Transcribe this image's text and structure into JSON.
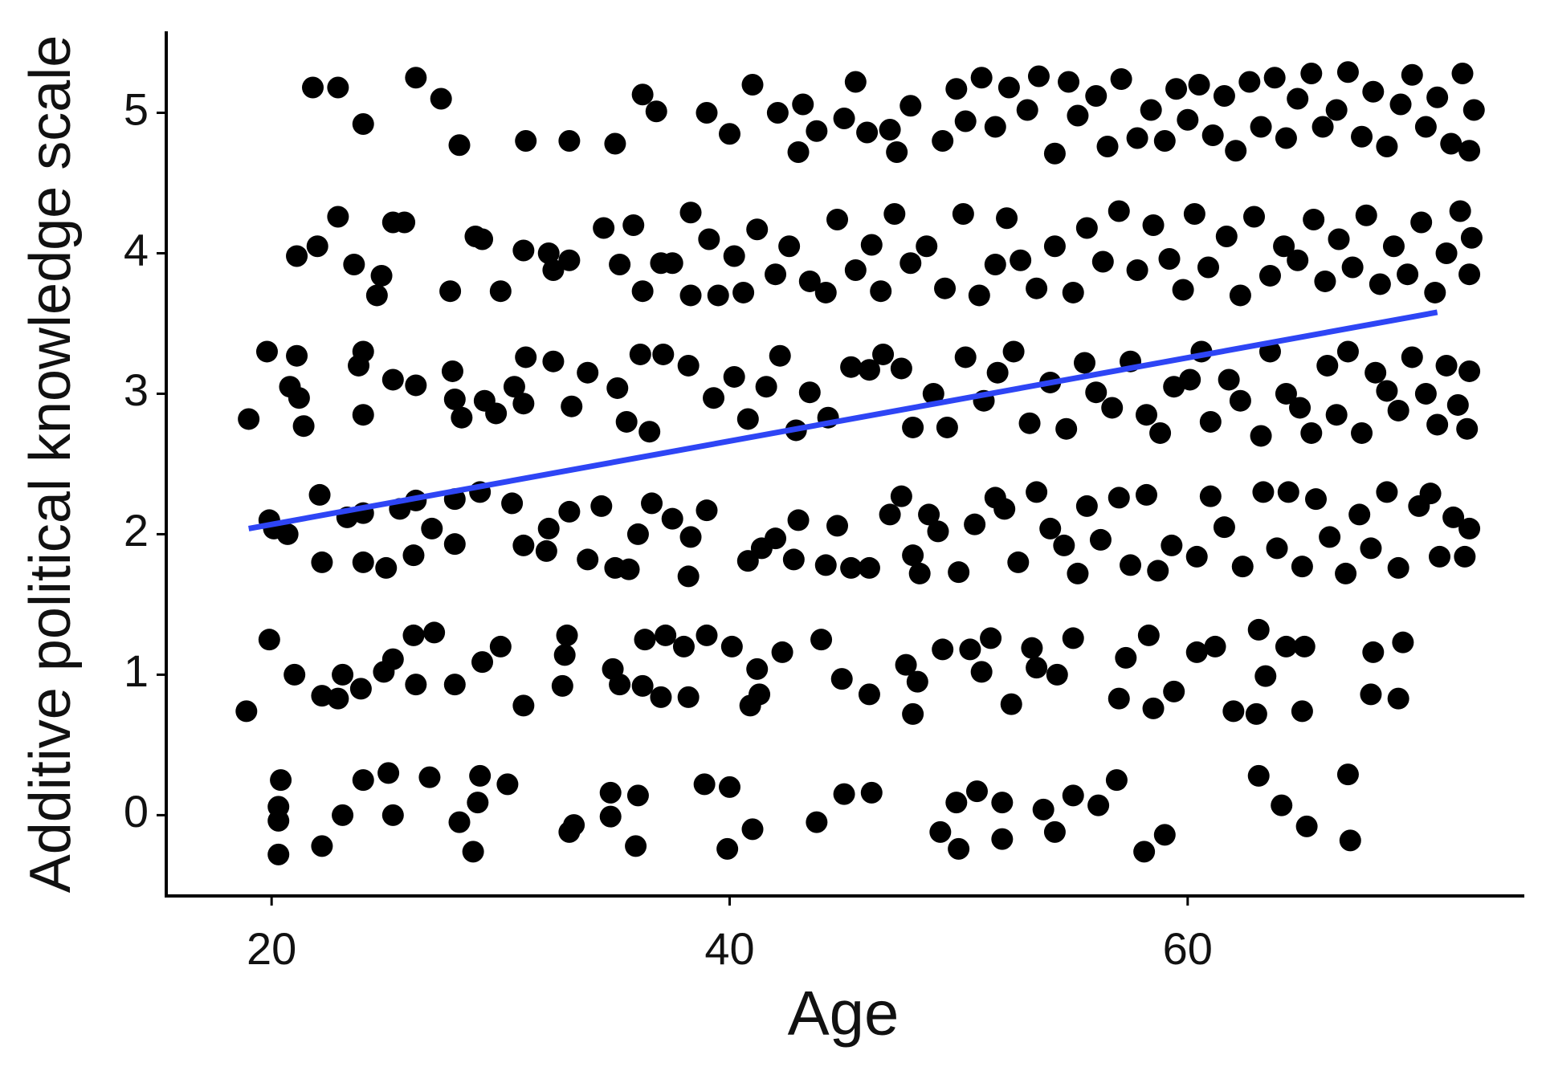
{
  "chart_data": {
    "type": "scatter",
    "x_label": "Age",
    "y_label": "Additive political knowledge scale",
    "xlim": [
      15.4,
      74.7
    ],
    "ylim": [
      -0.575,
      5.58
    ],
    "xticks": [
      20,
      40,
      60
    ],
    "yticks": [
      0,
      1,
      2,
      3,
      4,
      5
    ],
    "color": "#000000",
    "x": [
      20.4,
      20.3,
      20.3,
      20.3,
      22.2,
      23.1,
      24,
      25.1,
      25.3,
      26.9,
      28.2,
      28.8,
      29.1,
      29,
      30.3,
      33,
      33.2,
      34.8,
      34.8,
      36,
      35.9,
      38.9,
      40,
      39.9,
      41,
      43.8,
      45,
      46.2,
      49.2,
      49.9,
      50,
      50.8,
      51.9,
      51.9,
      53.7,
      54.2,
      55,
      56.1,
      56.9,
      58.1,
      59,
      63.1,
      64.1,
      65.2,
      67,
      67.1,
      18.9,
      19.9,
      21,
      22.2,
      22.9,
      23.1,
      23.9,
      24.9,
      25.3,
      26.2,
      26.3,
      27.1,
      28,
      29.2,
      30,
      31,
      32.7,
      32.9,
      32.8,
      34.9,
      35.2,
      36.2,
      36.3,
      37,
      37.2,
      38,
      38.2,
      39,
      40.1,
      40.9,
      41.3,
      41.2,
      42.3,
      44,
      44.9,
      46.1,
      47.7,
      48,
      48.2,
      49.3,
      50.5,
      51,
      51.4,
      52.3,
      53.2,
      53.4,
      54.3,
      55,
      57,
      57.3,
      58.3,
      58.5,
      59.4,
      60.4,
      61.2,
      62,
      63,
      63.1,
      63.4,
      64.3,
      65.1,
      65,
      68.1,
      68,
      69.2,
      69.4,
      19.9,
      20.1,
      20.7,
      22.2,
      22.1,
      23.3,
      24,
      24,
      25,
      25.6,
      26.2,
      26.3,
      27,
      28,
      28,
      29.1,
      30.5,
      31,
      32.1,
      32,
      33,
      33.8,
      34.4,
      35,
      35.6,
      36,
      36.6,
      37.5,
      38.2,
      38.3,
      39,
      40.8,
      41.4,
      42,
      42.8,
      43,
      44.2,
      44.7,
      45.3,
      46.1,
      47,
      47.5,
      48,
      48.3,
      48.7,
      49.1,
      50,
      50.7,
      51.6,
      52,
      52.6,
      53.4,
      54,
      54.6,
      55.2,
      55.6,
      56.2,
      57,
      57.5,
      58.2,
      58.7,
      59.3,
      60.4,
      61,
      61.6,
      62.4,
      63.3,
      63.9,
      64.4,
      65,
      65.6,
      66.2,
      66.9,
      67.5,
      68,
      68.7,
      69.2,
      70.1,
      70.6,
      71,
      71.6,
      72.3,
      72.1,
      19,
      19.8,
      20.8,
      21.1,
      21.4,
      21.2,
      23.8,
      24,
      24,
      25.3,
      26.3,
      27.9,
      28,
      28.3,
      29.3,
      29.8,
      30.6,
      31.1,
      31,
      32.3,
      33.1,
      33.8,
      35.1,
      35.5,
      36.1,
      36.5,
      37.1,
      38.2,
      39.3,
      40.2,
      40.8,
      41.6,
      42.2,
      42.9,
      43.5,
      44.3,
      45.3,
      46.1,
      46.7,
      47.5,
      48,
      48.9,
      49.5,
      50.3,
      51.1,
      51.7,
      52.4,
      53.1,
      54,
      54.7,
      55.5,
      56,
      56.7,
      57.5,
      58.2,
      58.8,
      59.4,
      60.1,
      60.6,
      61,
      61.8,
      62.3,
      63.2,
      63.6,
      64.3,
      64.9,
      65.4,
      66.1,
      66.5,
      67,
      67.6,
      68.2,
      68.7,
      69.2,
      69.8,
      70.4,
      70.9,
      71.3,
      71.8,
      72.3,
      72.2,
      21.1,
      22,
      22.9,
      23.6,
      24.6,
      24.8,
      25.3,
      25.8,
      27.8,
      28.9,
      29.2,
      30,
      31,
      32.1,
      32.3,
      33,
      34.5,
      35.2,
      35.8,
      36.2,
      37,
      37.5,
      38.3,
      38.3,
      39.1,
      39.5,
      40.2,
      40.6,
      41.2,
      42,
      42.6,
      43.5,
      44.2,
      44.7,
      45.5,
      46.2,
      46.6,
      47.2,
      47.9,
      48.6,
      49.4,
      50.2,
      50.9,
      51.6,
      52.1,
      52.7,
      53.4,
      54.2,
      55,
      55.6,
      56.3,
      57,
      57.8,
      58.5,
      59.2,
      59.8,
      60.3,
      60.9,
      61.7,
      62.3,
      62.9,
      63.6,
      64.2,
      64.8,
      65.5,
      66,
      66.6,
      67.2,
      67.8,
      68.4,
      69,
      69.6,
      70.2,
      70.8,
      71.3,
      71.9,
      72.4,
      72.3,
      21.8,
      22.9,
      24,
      26.3,
      27.4,
      28.2,
      31.1,
      33,
      35,
      36.2,
      36.8,
      39,
      40,
      41,
      42.1,
      43,
      43.2,
      43.8,
      45,
      45.5,
      46,
      47,
      47.3,
      47.9,
      49.3,
      49.9,
      50.3,
      51,
      51.6,
      52.2,
      53,
      53.5,
      54.2,
      54.8,
      55.2,
      56,
      56.5,
      57.1,
      57.8,
      58.4,
      59,
      59.5,
      60,
      60.5,
      61.1,
      61.6,
      62.1,
      62.7,
      63.2,
      63.8,
      64.3,
      64.8,
      65.4,
      65.9,
      66.5,
      67,
      67.6,
      68.1,
      68.7,
      69.3,
      69.8,
      70.4,
      70.9,
      71.5,
      72,
      72.3,
      72.5
    ],
    "values": [
      0.25,
      0.06,
      -0.04,
      -0.28,
      -0.22,
      0,
      0.25,
      0.3,
      0,
      0.27,
      -0.05,
      -0.26,
      0.28,
      0.09,
      0.22,
      -0.12,
      -0.07,
      0.16,
      -0.01,
      0.14,
      -0.22,
      0.22,
      0.2,
      -0.24,
      -0.1,
      -0.05,
      0.15,
      0.16,
      -0.12,
      0.09,
      -0.24,
      0.17,
      0.09,
      -0.17,
      0.04,
      -0.12,
      0.14,
      0.07,
      0.25,
      -0.26,
      -0.14,
      0.28,
      0.07,
      -0.08,
      0.29,
      -0.18,
      0.74,
      1.25,
      1.0,
      0.85,
      0.83,
      1.0,
      0.9,
      1.02,
      1.11,
      1.28,
      0.93,
      1.3,
      0.93,
      1.09,
      1.2,
      0.78,
      0.92,
      1.28,
      1.14,
      1.04,
      0.93,
      0.92,
      1.25,
      0.84,
      1.28,
      1.2,
      0.84,
      1.28,
      1.2,
      0.78,
      0.86,
      1.04,
      1.16,
      1.25,
      0.97,
      0.86,
      1.07,
      0.72,
      0.95,
      1.18,
      1.18,
      1.02,
      1.26,
      0.79,
      1.19,
      1.05,
      1.0,
      1.26,
      0.83,
      1.12,
      1.28,
      0.76,
      0.88,
      1.16,
      1.2,
      0.74,
      0.72,
      1.32,
      0.99,
      1.2,
      1.2,
      0.74,
      1.16,
      0.86,
      0.83,
      1.23,
      2.1,
      2.04,
      2.0,
      1.8,
      2.28,
      2.12,
      1.8,
      2.15,
      1.76,
      2.18,
      1.85,
      2.24,
      2.04,
      1.93,
      2.25,
      2.3,
      2.22,
      1.92,
      2.04,
      1.88,
      2.16,
      1.82,
      2.2,
      1.76,
      1.75,
      2.0,
      2.22,
      2.11,
      1.7,
      1.98,
      2.17,
      1.81,
      1.9,
      1.97,
      1.82,
      2.1,
      1.78,
      2.06,
      1.76,
      1.76,
      2.14,
      2.27,
      1.85,
      1.72,
      2.14,
      2.02,
      1.73,
      2.07,
      2.26,
      2.18,
      1.8,
      2.3,
      2.04,
      1.92,
      1.72,
      2.2,
      1.96,
      2.26,
      1.78,
      2.28,
      1.74,
      1.92,
      1.84,
      2.27,
      2.05,
      1.77,
      2.3,
      1.9,
      2.3,
      1.77,
      2.25,
      1.98,
      1.72,
      2.14,
      1.9,
      2.3,
      1.76,
      2.2,
      2.29,
      1.84,
      2.12,
      2.04,
      1.84,
      2.82,
      3.3,
      3.05,
      3.27,
      2.77,
      2.97,
      3.2,
      3.3,
      2.85,
      3.1,
      3.06,
      3.16,
      2.96,
      2.83,
      2.95,
      2.86,
      3.05,
      3.26,
      2.93,
      3.23,
      2.91,
      3.15,
      3.04,
      2.8,
      3.28,
      2.73,
      3.28,
      3.2,
      2.97,
      3.12,
      2.82,
      3.05,
      3.27,
      2.74,
      3.01,
      2.83,
      3.19,
      3.17,
      3.28,
      3.18,
      2.76,
      3.0,
      2.76,
      3.26,
      2.95,
      3.15,
      3.3,
      2.79,
      3.08,
      2.75,
      3.22,
      3.01,
      2.9,
      3.23,
      2.85,
      2.72,
      3.05,
      3.1,
      3.3,
      2.8,
      3.1,
      2.95,
      2.7,
      3.3,
      3.0,
      2.9,
      2.72,
      3.2,
      2.85,
      3.3,
      2.72,
      3.15,
      3.02,
      2.88,
      3.26,
      3.0,
      2.78,
      3.2,
      2.92,
      3.16,
      2.75,
      3.98,
      4.05,
      4.26,
      3.92,
      3.7,
      3.84,
      4.22,
      4.22,
      3.73,
      4.12,
      4.1,
      3.73,
      4.02,
      4.0,
      3.88,
      3.95,
      4.18,
      3.92,
      4.2,
      3.73,
      3.93,
      3.93,
      3.7,
      4.29,
      4.1,
      3.7,
      3.98,
      3.72,
      4.17,
      3.85,
      4.05,
      3.8,
      3.72,
      4.24,
      3.88,
      4.06,
      3.73,
      4.28,
      3.93,
      4.05,
      3.75,
      4.28,
      3.7,
      3.92,
      4.25,
      3.95,
      3.75,
      4.05,
      3.72,
      4.18,
      3.94,
      4.3,
      3.88,
      4.2,
      3.96,
      3.74,
      4.28,
      3.9,
      4.12,
      3.7,
      4.26,
      3.84,
      4.05,
      3.95,
      4.24,
      3.8,
      4.1,
      3.9,
      4.27,
      3.78,
      4.05,
      3.85,
      4.22,
      3.72,
      4.0,
      4.3,
      4.11,
      3.85,
      5.18,
      5.18,
      4.92,
      5.25,
      5.1,
      4.77,
      4.8,
      4.8,
      4.78,
      5.13,
      5.01,
      5.0,
      4.85,
      5.2,
      5.0,
      4.72,
      5.06,
      4.87,
      4.96,
      5.22,
      4.86,
      4.88,
      4.72,
      5.05,
      4.8,
      5.17,
      4.94,
      5.25,
      4.9,
      5.18,
      5.02,
      5.26,
      4.71,
      5.22,
      4.98,
      5.12,
      4.76,
      5.24,
      4.82,
      5.02,
      4.8,
      5.17,
      4.95,
      5.2,
      4.84,
      5.12,
      4.73,
      5.22,
      4.9,
      5.25,
      4.82,
      5.1,
      5.28,
      4.9,
      5.02,
      5.29,
      4.83,
      5.15,
      4.76,
      5.06,
      5.27,
      4.9,
      5.11,
      4.78,
      5.28,
      4.73,
      5.02
    ],
    "trend_line": {
      "x": [
        19,
        70.9
      ],
      "y": [
        2.04,
        3.58
      ],
      "color": "#2e45f5"
    }
  }
}
